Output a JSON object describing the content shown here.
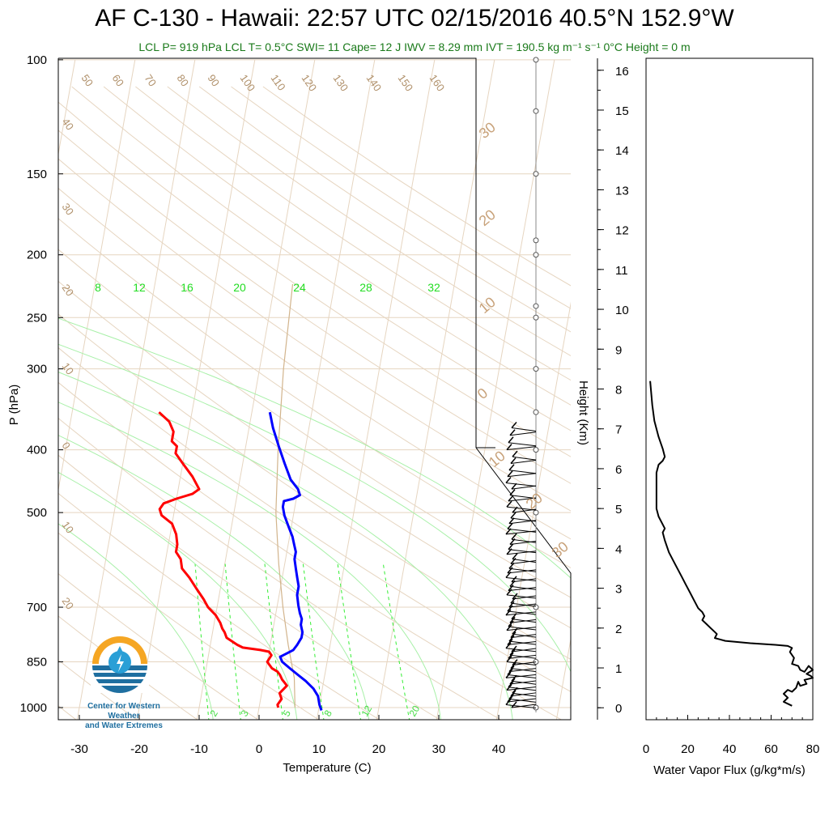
{
  "title": "AF C-130 - Hawaii: 22:57 UTC 02/15/2016  40.5°N 152.9°W",
  "subtitle": "LCL P= 919 hPa  LCL T= 0.5°C  SWI= 11  Cape= 12 J  IWV = 8.29 mm  IVT = 190.5 kg m⁻¹ s⁻¹  0°C Height = 0 m",
  "logo": {
    "line1": "Center for Western Weather",
    "line2": "and Water Extremes"
  },
  "colors": {
    "temperature": "#ff0000",
    "dewpoint": "#0000ff",
    "mixing_ratio": "#33ee33",
    "adiabat": "#d2b48c",
    "background_lines": "#e6d5c0"
  },
  "chart_data": [
    {
      "type": "line",
      "xlabel": "Temperature (C)",
      "ylabel": "P (hPa)",
      "x_ticks": [
        "-30",
        "-20",
        "-10",
        "0",
        "10",
        "20",
        "30",
        "40"
      ],
      "y_ticks": [
        "100",
        "150",
        "200",
        "250",
        "300",
        "400",
        "500",
        "700",
        "850",
        "1000"
      ],
      "xlim": [
        -34,
        52
      ],
      "ylim": [
        1050,
        100
      ],
      "y_scale": "log",
      "dry_adiabat_labels": [
        "50",
        "60",
        "70",
        "80",
        "90",
        "100",
        "110",
        "120",
        "130",
        "140",
        "150",
        "160"
      ],
      "left_adiabat_labels": [
        "40",
        "30",
        "20",
        "10",
        "0",
        "10",
        "20"
      ],
      "isotherm_labels": [
        "30",
        "20",
        "10",
        "0",
        "10",
        "20",
        "30"
      ],
      "mixing_ratio_top_labels": [
        "8",
        "12",
        "16",
        "20",
        "24",
        "28",
        "32"
      ],
      "mixing_ratio_bottom_labels": [
        "2",
        "3",
        "5",
        "8",
        "12",
        "20"
      ],
      "series": [
        {
          "points": [
            [
              -25.5,
              350
            ],
            [
              -23.5,
              362
            ],
            [
              -22.5,
              375
            ],
            [
              -22.5,
              388
            ],
            [
              -21.5,
              395
            ],
            [
              -21.5,
              405
            ],
            [
              -20,
              420
            ],
            [
              -18,
              440
            ],
            [
              -16.5,
              460
            ],
            [
              -17.5,
              468
            ],
            [
              -20,
              476
            ],
            [
              -22,
              484
            ],
            [
              -22.5,
              494
            ],
            [
              -22,
              505
            ],
            [
              -20,
              520
            ],
            [
              -19,
              540
            ],
            [
              -18.5,
              560
            ],
            [
              -18.5,
              575
            ],
            [
              -17.5,
              590
            ],
            [
              -17,
              610
            ],
            [
              -15.5,
              630
            ],
            [
              -14,
              655
            ],
            [
              -12.5,
              680
            ],
            [
              -11.5,
              700
            ],
            [
              -10,
              720
            ],
            [
              -9,
              740
            ],
            [
              -8.5,
              755
            ],
            [
              -8,
              765
            ],
            [
              -7.5,
              780
            ],
            [
              -6.5,
              790
            ],
            [
              -5.5,
              800
            ],
            [
              -4.5,
              808
            ],
            [
              -1.5,
              815
            ],
            [
              0,
              820
            ],
            [
              0.5,
              830
            ],
            [
              0,
              850
            ],
            [
              1,
              870
            ],
            [
              2,
              880
            ],
            [
              2.5,
              890
            ],
            [
              3,
              905
            ],
            [
              3.5,
              915
            ],
            [
              4,
              925
            ],
            [
              3,
              950
            ],
            [
              3.5,
              970
            ],
            [
              3,
              990
            ],
            [
              3.2,
              1000
            ]
          ]
        },
        {
          "points": [
            [
              -7,
              350
            ],
            [
              -6,
              370
            ],
            [
              -4.5,
              395
            ],
            [
              -3,
              420
            ],
            [
              -1.5,
              445
            ],
            [
              0,
              460
            ],
            [
              0.5,
              470
            ],
            [
              -0.5,
              476
            ],
            [
              -2,
              480
            ],
            [
              -2,
              490
            ],
            [
              -1.5,
              505
            ],
            [
              -0.5,
              525
            ],
            [
              0.5,
              545
            ],
            [
              1,
              560
            ],
            [
              1.5,
              575
            ],
            [
              1.5,
              590
            ],
            [
              2,
              610
            ],
            [
              2.5,
              630
            ],
            [
              3,
              650
            ],
            [
              3,
              670
            ],
            [
              3.5,
              695
            ],
            [
              4,
              715
            ],
            [
              4.5,
              730
            ],
            [
              4.5,
              745
            ],
            [
              5,
              765
            ],
            [
              5,
              780
            ],
            [
              4.5,
              800
            ],
            [
              4,
              815
            ],
            [
              3,
              825
            ],
            [
              2,
              835
            ],
            [
              2.5,
              850
            ],
            [
              4,
              870
            ],
            [
              5.5,
              890
            ],
            [
              7,
              910
            ],
            [
              8.5,
              935
            ],
            [
              9.5,
              960
            ],
            [
              10,
              990
            ],
            [
              10.5,
              1010
            ]
          ]
        },
        {
          "points": [
            [
              -7,
              222
            ],
            [
              -6,
              300
            ],
            [
              -4.5,
              400
            ],
            [
              -3,
              500
            ],
            [
              -1,
              600
            ],
            [
              1,
              700
            ],
            [
              3,
              800
            ],
            [
              5,
              900
            ],
            [
              6,
              1000
            ]
          ]
        }
      ]
    },
    {
      "type": "line",
      "xlabel": "Water Vapor Flux (g/kg*m/s)",
      "ylabel": "Height (Km)",
      "x_ticks": [
        "0",
        "20",
        "40",
        "60",
        "80"
      ],
      "y_ticks": [
        "0",
        "1",
        "2",
        "3",
        "4",
        "5",
        "6",
        "7",
        "8",
        "9",
        "10",
        "11",
        "12",
        "13",
        "14",
        "15",
        "16"
      ],
      "xlim": [
        0,
        80
      ],
      "ylim": [
        -0.3,
        16.3
      ],
      "series": [
        {
          "points": [
            [
              2,
              8.2
            ],
            [
              3,
              7.6
            ],
            [
              4,
              7.2
            ],
            [
              6,
              6.8
            ],
            [
              8,
              6.5
            ],
            [
              9,
              6.3
            ],
            [
              8,
              6.2
            ],
            [
              6,
              6.1
            ],
            [
              5,
              5.9
            ],
            [
              5,
              5.5
            ],
            [
              5,
              5.0
            ],
            [
              6,
              4.8
            ],
            [
              8,
              4.6
            ],
            [
              9,
              4.5
            ],
            [
              8,
              4.4
            ],
            [
              9,
              4.2
            ],
            [
              11,
              3.9
            ],
            [
              14,
              3.6
            ],
            [
              17,
              3.3
            ],
            [
              19,
              3.1
            ],
            [
              21,
              2.9
            ],
            [
              23,
              2.7
            ],
            [
              25,
              2.5
            ],
            [
              27,
              2.4
            ],
            [
              28,
              2.3
            ],
            [
              27,
              2.2
            ],
            [
              29,
              2.1
            ],
            [
              31,
              2.0
            ],
            [
              33,
              1.9
            ],
            [
              34,
              1.85
            ],
            [
              33,
              1.75
            ],
            [
              38,
              1.68
            ],
            [
              50,
              1.62
            ],
            [
              62,
              1.58
            ],
            [
              68,
              1.55
            ],
            [
              70,
              1.5
            ],
            [
              69,
              1.4
            ],
            [
              71,
              1.25
            ],
            [
              70,
              1.1
            ],
            [
              73,
              1.05
            ],
            [
              74,
              0.95
            ],
            [
              76,
              0.9
            ],
            [
              78,
              1.05
            ],
            [
              80,
              0.95
            ],
            [
              77,
              0.85
            ],
            [
              79,
              0.8
            ],
            [
              80,
              0.75
            ],
            [
              76,
              0.7
            ],
            [
              77,
              0.6
            ],
            [
              74,
              0.55
            ],
            [
              73,
              0.65
            ],
            [
              72,
              0.5
            ],
            [
              70,
              0.4
            ],
            [
              68,
              0.45
            ],
            [
              66,
              0.35
            ],
            [
              68,
              0.25
            ],
            [
              66,
              0.15
            ],
            [
              68,
              0.1
            ],
            [
              70,
              0.05
            ]
          ]
        }
      ]
    }
  ]
}
